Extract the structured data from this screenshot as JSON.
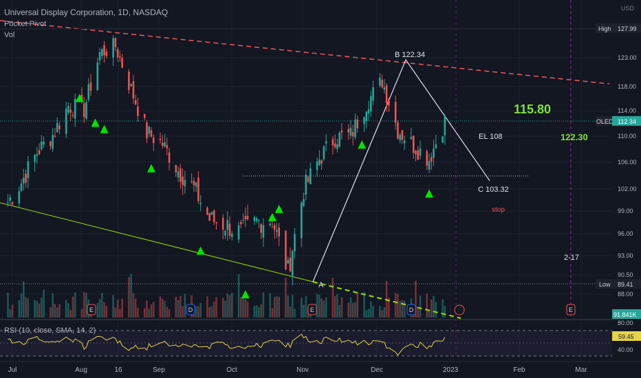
{
  "header": {
    "symbol_line": "Universal Display Corporation, 1D, NASDAQ",
    "indicator_1": "Pocket Pivot",
    "indicator_2": "Vol"
  },
  "rsi_panel": {
    "label": "RSI (10, close, SMA, 14, 2)",
    "value_badge": "59.45",
    "levels": [
      "80.00",
      "60.00",
      "40.00"
    ]
  },
  "price_axis": {
    "currency": "USD",
    "ticks": [
      "123.00",
      "118.00",
      "114.00",
      "110.00",
      "106.00",
      "102.00",
      "99.00",
      "96.00",
      "93.00",
      "90.50",
      "88.00"
    ],
    "high_label": "High",
    "high_value": "127.99",
    "low_label": "Low",
    "low_value": "89.41",
    "symbol_badge": "OLED",
    "symbol_price": "112.34",
    "volume_badge": "91.841K"
  },
  "time_axis": {
    "labels": [
      "Jul",
      "Aug",
      "16",
      "Sep",
      "Oct",
      "Nov",
      "Dec",
      "2023",
      "Feb",
      "Mar"
    ]
  },
  "annotations": {
    "point_b": "B 122.34",
    "point_a": "A",
    "point_c": "C 103.32",
    "target_1": "115.80",
    "target_2": "122.30",
    "entry": "EL 108",
    "stop": "stop",
    "date_note": "2-17"
  },
  "event_markers": [
    "E",
    "D",
    "E",
    "D",
    "E"
  ],
  "colors": {
    "background": "#131722",
    "up": "#26a69a",
    "down": "#ef5350",
    "signal": "#00e600",
    "resistance": "#f05a5a",
    "support": "#9be000",
    "rsi_line": "#e6d34a",
    "target": "#7ee03a"
  },
  "chart_data": {
    "type": "candlestick",
    "title": "Universal Display Corporation, 1D, NASDAQ",
    "currency": "USD",
    "x_range": [
      "2022-06-29",
      "2023-03-15"
    ],
    "ylim": [
      87.0,
      128.0
    ],
    "last_price": 112.34,
    "high": 127.99,
    "low": 89.41,
    "closes_approx": [
      {
        "x": "2022-06-29",
        "close": 100.2
      },
      {
        "x": "2022-07-05",
        "close": 103.0
      },
      {
        "x": "2022-07-12",
        "close": 107.5
      },
      {
        "x": "2022-07-19",
        "close": 110.2
      },
      {
        "x": "2022-07-26",
        "close": 114.8
      },
      {
        "x": "2022-08-02",
        "close": 114.2
      },
      {
        "x": "2022-08-09",
        "close": 123.8
      },
      {
        "x": "2022-08-16",
        "close": 125.0
      },
      {
        "x": "2022-08-23",
        "close": 117.5
      },
      {
        "x": "2022-08-30",
        "close": 110.5
      },
      {
        "x": "2022-09-06",
        "close": 108.8
      },
      {
        "x": "2022-09-13",
        "close": 104.8
      },
      {
        "x": "2022-09-20",
        "close": 102.1
      },
      {
        "x": "2022-09-27",
        "close": 97.9
      },
      {
        "x": "2022-10-04",
        "close": 97.2
      },
      {
        "x": "2022-10-11",
        "close": 96.1
      },
      {
        "x": "2022-10-18",
        "close": 97.6
      },
      {
        "x": "2022-10-25",
        "close": 97.8
      },
      {
        "x": "2022-11-01",
        "close": 91.0
      },
      {
        "x": "2022-11-08",
        "close": 101.9
      },
      {
        "x": "2022-11-15",
        "close": 106.5
      },
      {
        "x": "2022-11-22",
        "close": 109.8
      },
      {
        "x": "2022-11-29",
        "close": 110.1
      },
      {
        "x": "2022-12-06",
        "close": 115.2
      },
      {
        "x": "2022-12-13",
        "close": 119.0
      },
      {
        "x": "2022-12-20",
        "close": 111.0
      },
      {
        "x": "2022-12-27",
        "close": 108.6
      },
      {
        "x": "2023-01-03",
        "close": 106.5
      },
      {
        "x": "2023-01-10",
        "close": 112.34
      }
    ]
  }
}
